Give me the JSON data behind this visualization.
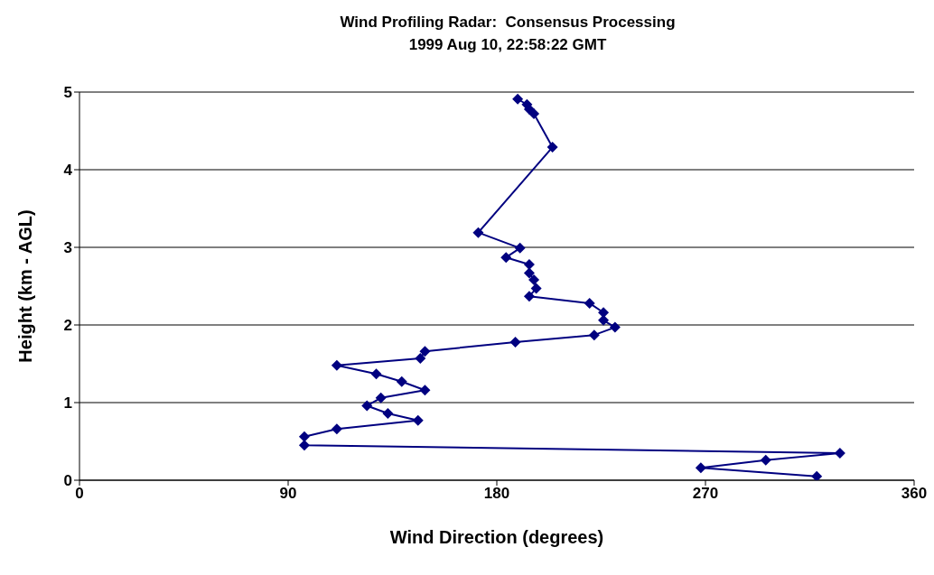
{
  "chart_data": {
    "type": "line",
    "title": "Wind Profiling Radar:  Consensus Processing",
    "subtitle": "1999 Aug 10, 22:58:22 GMT",
    "xlabel": "Wind Direction (degrees)",
    "ylabel": "Height (km - AGL)",
    "x": [
      318,
      268,
      296,
      328,
      97,
      97,
      111,
      146,
      133,
      124,
      130,
      149,
      139,
      128,
      111,
      147,
      149,
      188,
      222,
      231,
      226,
      226,
      220,
      194,
      197,
      196,
      194,
      194,
      184,
      190,
      172,
      204,
      196,
      194,
      193,
      189
    ],
    "values": [
      0.05,
      0.16,
      0.26,
      0.35,
      0.45,
      0.56,
      0.66,
      0.77,
      0.86,
      0.96,
      1.06,
      1.16,
      1.27,
      1.37,
      1.48,
      1.57,
      1.66,
      1.78,
      1.87,
      1.97,
      2.06,
      2.16,
      2.28,
      2.37,
      2.47,
      2.58,
      2.67,
      2.78,
      2.87,
      2.99,
      3.19,
      4.29,
      4.72,
      4.78,
      4.84,
      4.91
    ],
    "color": "#000080",
    "marker": "diamond",
    "line_style": "solid",
    "xlim": [
      0,
      360
    ],
    "xticks": [
      0,
      90,
      180,
      270,
      360
    ],
    "ylim": [
      0,
      5
    ],
    "yticks": [
      0,
      1,
      2,
      3,
      4,
      5
    ],
    "grid": "y"
  }
}
